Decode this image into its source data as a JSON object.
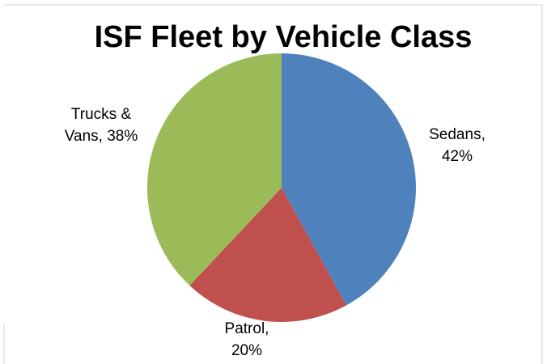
{
  "chart_data": {
    "type": "pie",
    "title": "ISF Fleet by Vehicle Class",
    "categories": [
      "Sedans",
      "Patrol",
      "Trucks & Vans"
    ],
    "values": [
      42,
      20,
      38
    ],
    "value_labels": [
      "Sedans, 42%",
      "Patrol, 20%",
      "Trucks & Vans, 38%"
    ],
    "colors": [
      "#4f81bd",
      "#c0504d",
      "#9bbb59"
    ]
  }
}
